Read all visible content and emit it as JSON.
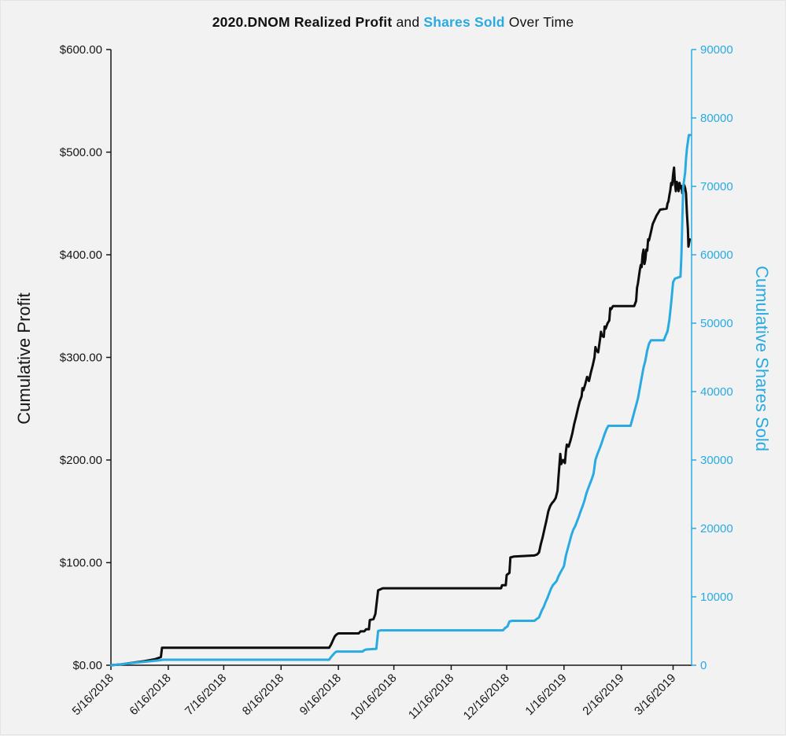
{
  "title": {
    "parts": [
      {
        "text": "2020.DNOM ",
        "bold": true,
        "color": "#111111"
      },
      {
        "text": "Realized Profit",
        "bold": true,
        "color": "#111111"
      },
      {
        "text": " and ",
        "bold": false,
        "color": "#111111"
      },
      {
        "text": "Shares Sold",
        "bold": true,
        "color": "#29ABE2"
      },
      {
        "text": " Over Time",
        "bold": false,
        "color": "#111111"
      }
    ]
  },
  "colors": {
    "background": "#F2F2F2",
    "profit_line": "#0D0D0D",
    "shares_line": "#29ABE2",
    "axis_black": "#161616"
  },
  "chart_data": {
    "type": "line",
    "title": "2020.DNOM Realized Profit and Shares Sold Over Time",
    "grid": false,
    "legend_position": "none",
    "x_axis": {
      "label": "",
      "start_date": "5/16/2018",
      "range_days": [
        0,
        314
      ],
      "tick_days": [
        0,
        31,
        61,
        92,
        123,
        153,
        184,
        214,
        245,
        276,
        304
      ],
      "tick_labels": [
        "5/16/2018",
        "6/16/2018",
        "7/16/2018",
        "8/16/2018",
        "9/16/2018",
        "10/16/2018",
        "11/16/2018",
        "12/16/2018",
        "1/16/2019",
        "2/16/2019",
        "3/16/2019"
      ]
    },
    "y_left": {
      "label": "Cumulative Profit",
      "range": [
        0,
        600
      ],
      "ticks": [
        0,
        100,
        200,
        300,
        400,
        500,
        600
      ],
      "tick_labels": [
        "$0.00",
        "$100.00",
        "$200.00",
        "$300.00",
        "$400.00",
        "$500.00",
        "$600.00"
      ],
      "color": "#161616"
    },
    "y_right": {
      "label": "Cumulative Shares Sold",
      "range": [
        0,
        90000
      ],
      "ticks": [
        0,
        10000,
        20000,
        30000,
        40000,
        50000,
        60000,
        70000,
        80000,
        90000
      ],
      "tick_labels": [
        "0",
        "10000",
        "20000",
        "30000",
        "40000",
        "50000",
        "60000",
        "70000",
        "80000",
        "90000"
      ],
      "color": "#29ABE2"
    },
    "series": [
      {
        "name": "Cumulative Realized Profit ($)",
        "axis": "left",
        "color": "#0D0D0D",
        "width": 3,
        "points": [
          [
            0,
            0
          ],
          [
            6,
            1
          ],
          [
            12,
            2.5
          ],
          [
            18,
            4
          ],
          [
            24,
            6
          ],
          [
            27,
            8
          ],
          [
            27.6,
            17
          ],
          [
            118,
            17
          ],
          [
            119,
            20
          ],
          [
            120,
            24
          ],
          [
            121,
            28
          ],
          [
            122,
            30
          ],
          [
            123,
            31
          ],
          [
            134,
            31
          ],
          [
            135,
            33
          ],
          [
            137,
            33
          ],
          [
            138,
            35
          ],
          [
            139.5,
            35
          ],
          [
            140,
            44
          ],
          [
            142,
            45
          ],
          [
            143,
            50
          ],
          [
            144.5,
            73
          ],
          [
            147,
            75
          ],
          [
            211,
            75
          ],
          [
            211.5,
            78
          ],
          [
            213.5,
            78
          ],
          [
            214,
            88
          ],
          [
            215.5,
            90
          ],
          [
            216,
            105
          ],
          [
            218,
            106
          ],
          [
            229,
            107
          ],
          [
            230.5,
            108
          ],
          [
            231.5,
            110
          ],
          [
            232.5,
            118
          ],
          [
            233.5,
            125
          ],
          [
            234.5,
            133
          ],
          [
            235.5,
            141
          ],
          [
            236.5,
            150
          ],
          [
            237.5,
            155
          ],
          [
            238.5,
            158
          ],
          [
            239.5,
            160
          ],
          [
            240.5,
            163
          ],
          [
            241.5,
            170
          ],
          [
            242,
            183
          ],
          [
            242.5,
            195
          ],
          [
            243,
            206
          ],
          [
            243.5,
            196
          ],
          [
            244.5,
            200
          ],
          [
            245.5,
            197
          ],
          [
            246,
            208
          ],
          [
            246.5,
            215
          ],
          [
            247.5,
            213
          ],
          [
            248.5,
            219
          ],
          [
            249.5,
            226
          ],
          [
            250.5,
            235
          ],
          [
            251.5,
            242
          ],
          [
            252.5,
            250
          ],
          [
            253.5,
            257
          ],
          [
            254.5,
            262
          ],
          [
            255,
            270
          ],
          [
            255.5,
            268
          ],
          [
            256.5,
            274
          ],
          [
            257.5,
            281
          ],
          [
            258.5,
            277
          ],
          [
            259.5,
            285
          ],
          [
            260.5,
            292
          ],
          [
            261.5,
            300
          ],
          [
            262,
            310
          ],
          [
            262.5,
            307
          ],
          [
            263.5,
            305
          ],
          [
            264.5,
            318
          ],
          [
            265,
            325
          ],
          [
            265.5,
            321
          ],
          [
            266.5,
            320
          ],
          [
            267,
            330
          ],
          [
            267.5,
            328
          ],
          [
            268.5,
            333
          ],
          [
            269.5,
            336
          ],
          [
            270,
            348
          ],
          [
            270.5,
            347
          ],
          [
            271.5,
            350
          ],
          [
            283,
            350
          ],
          [
            284,
            355
          ],
          [
            284.5,
            368
          ],
          [
            285,
            372
          ],
          [
            286,
            385
          ],
          [
            286.5,
            390
          ],
          [
            287,
            388
          ],
          [
            287.5,
            400
          ],
          [
            288,
            405
          ],
          [
            288.5,
            391
          ],
          [
            289,
            395
          ],
          [
            289.5,
            405
          ],
          [
            290,
            404
          ],
          [
            290.5,
            415
          ],
          [
            291,
            414
          ],
          [
            292,
            422
          ],
          [
            293,
            430
          ],
          [
            294,
            434
          ],
          [
            295,
            438
          ],
          [
            296,
            441
          ],
          [
            297,
            444
          ],
          [
            300.5,
            445
          ],
          [
            301,
            450
          ],
          [
            301.5,
            452
          ],
          [
            302,
            458
          ],
          [
            302.5,
            463
          ],
          [
            303,
            470
          ],
          [
            303.5,
            468
          ],
          [
            304,
            478
          ],
          [
            304.5,
            485
          ],
          [
            305,
            470
          ],
          [
            305.5,
            462
          ],
          [
            306,
            471
          ],
          [
            306.5,
            468
          ],
          [
            307,
            462
          ],
          [
            307.5,
            470
          ],
          [
            308,
            465
          ],
          [
            308.5,
            467
          ],
          [
            309,
            460
          ],
          [
            309.5,
            463
          ],
          [
            310,
            468
          ],
          [
            310.5,
            465
          ],
          [
            311,
            460
          ],
          [
            311.5,
            440
          ],
          [
            312,
            425
          ],
          [
            312.3,
            408
          ],
          [
            313,
            415
          ]
        ]
      },
      {
        "name": "Cumulative Shares Sold",
        "axis": "right",
        "color": "#29ABE2",
        "width": 3,
        "points": [
          [
            0,
            0
          ],
          [
            6,
            150
          ],
          [
            12,
            350
          ],
          [
            18,
            500
          ],
          [
            24,
            650
          ],
          [
            27,
            750
          ],
          [
            28,
            800
          ],
          [
            118,
            800
          ],
          [
            119,
            1200
          ],
          [
            121,
            1800
          ],
          [
            122,
            2000
          ],
          [
            136,
            2000
          ],
          [
            137,
            2200
          ],
          [
            138,
            2300
          ],
          [
            143.5,
            2400
          ],
          [
            144.5,
            5000
          ],
          [
            146,
            5100
          ],
          [
            212,
            5100
          ],
          [
            213,
            5400
          ],
          [
            214.5,
            5700
          ],
          [
            215.5,
            6400
          ],
          [
            217,
            6500
          ],
          [
            229,
            6500
          ],
          [
            230.5,
            6800
          ],
          [
            231.5,
            7000
          ],
          [
            233,
            8000
          ],
          [
            234,
            8500
          ],
          [
            235,
            9200
          ],
          [
            236,
            9800
          ],
          [
            237,
            10500
          ],
          [
            238,
            11200
          ],
          [
            239,
            11700
          ],
          [
            240,
            12000
          ],
          [
            241,
            12300
          ],
          [
            242,
            13000
          ],
          [
            243,
            13500
          ],
          [
            244,
            14000
          ],
          [
            245,
            14500
          ],
          [
            246,
            16000
          ],
          [
            247,
            17000
          ],
          [
            248,
            18000
          ],
          [
            249,
            19000
          ],
          [
            250,
            19800
          ],
          [
            251,
            20300
          ],
          [
            252,
            21000
          ],
          [
            253,
            21700
          ],
          [
            254,
            22500
          ],
          [
            255,
            23200
          ],
          [
            256,
            24000
          ],
          [
            257,
            25000
          ],
          [
            258,
            25800
          ],
          [
            259,
            26500
          ],
          [
            260,
            27200
          ],
          [
            261,
            28000
          ],
          [
            262,
            30000
          ],
          [
            263,
            30800
          ],
          [
            264,
            31500
          ],
          [
            265,
            32200
          ],
          [
            266,
            33000
          ],
          [
            267,
            33800
          ],
          [
            268,
            34500
          ],
          [
            269,
            35000
          ],
          [
            281,
            35000
          ],
          [
            282,
            36000
          ],
          [
            283,
            37000
          ],
          [
            284,
            38000
          ],
          [
            285,
            39000
          ],
          [
            286,
            40500
          ],
          [
            287,
            42000
          ],
          [
            288,
            43500
          ],
          [
            289,
            44500
          ],
          [
            290,
            46000
          ],
          [
            291,
            47000
          ],
          [
            292,
            47500
          ],
          [
            299,
            47500
          ],
          [
            300,
            48200
          ],
          [
            301,
            48800
          ],
          [
            302,
            50500
          ],
          [
            303,
            53000
          ],
          [
            304,
            56000
          ],
          [
            305,
            56500
          ],
          [
            308,
            56800
          ],
          [
            308.5,
            60000
          ],
          [
            309,
            65000
          ],
          [
            309.5,
            70000
          ],
          [
            310,
            71000
          ],
          [
            310.5,
            72000
          ],
          [
            311,
            74000
          ],
          [
            311.5,
            75500
          ],
          [
            312,
            76500
          ],
          [
            312.5,
            77500
          ],
          [
            313.2,
            77500
          ]
        ]
      }
    ]
  }
}
